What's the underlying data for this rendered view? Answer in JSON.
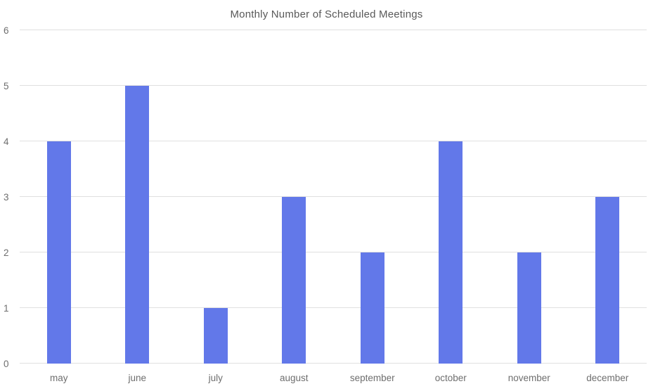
{
  "chart_data": {
    "type": "bar",
    "title": "Monthly Number of Scheduled Meetings",
    "categories": [
      "may",
      "june",
      "july",
      "august",
      "september",
      "october",
      "november",
      "december"
    ],
    "values": [
      4,
      5,
      1,
      3,
      2,
      4,
      2,
      3
    ],
    "xlabel": "",
    "ylabel": "",
    "ylim": [
      0,
      6
    ],
    "yticks": [
      0,
      1,
      2,
      3,
      4,
      5,
      6
    ],
    "grid": "horizontal",
    "legend_position": "none",
    "bar_color": "#6278E9",
    "gridline_color": "#e0e0e0",
    "tick_text_color": "#6e6e6e",
    "title_color": "#595959"
  }
}
